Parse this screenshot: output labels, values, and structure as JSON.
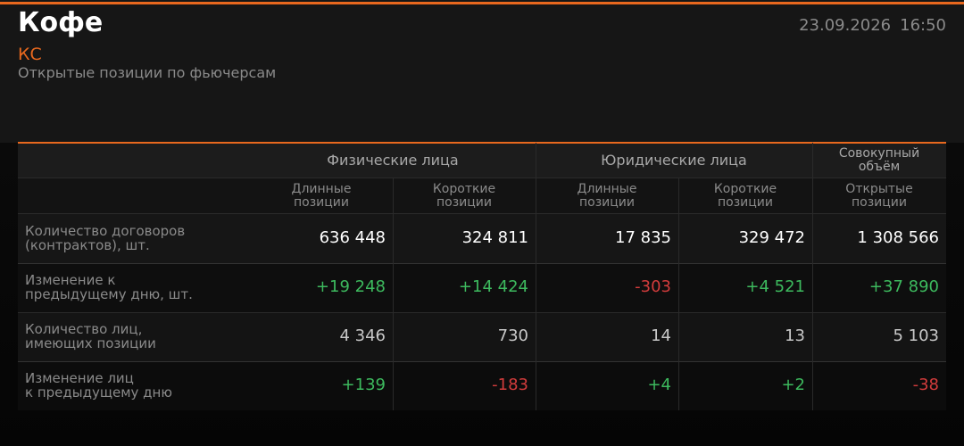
{
  "header": {
    "title": "Кофе",
    "ticker": "КС",
    "subtitle": "Открытые позиции по фьючерсам",
    "date": "23.09.2026",
    "time": "16:50"
  },
  "table": {
    "groups": [
      [
        "Физические лица"
      ],
      [
        "Юридические лица"
      ],
      [
        "Совокупный",
        "объём"
      ]
    ],
    "columns": [
      [
        "Длинные",
        "позиции"
      ],
      [
        "Короткие",
        "позиции"
      ],
      [
        "Длинные",
        "позиции"
      ],
      [
        "Короткие",
        "позиции"
      ],
      [
        "Открытые",
        "позиции"
      ]
    ],
    "rows": [
      {
        "label": [
          "Количество договоров",
          "(контрактов), шт."
        ],
        "values": [
          "636 448",
          "324 811",
          "17 835",
          "329 472",
          "1 308 566"
        ]
      },
      {
        "label": [
          "Изменение к",
          "предыдущему дню, шт."
        ],
        "values": [
          "+19 248",
          "+14 424",
          "-303",
          "+4 521",
          "+37 890"
        ]
      },
      {
        "label": [
          "Количество лиц,",
          "имеющих позиции"
        ],
        "values": [
          "4 346",
          "730",
          "14",
          "13",
          "5 103"
        ]
      },
      {
        "label": [
          "Изменение лиц",
          "к предыдущему дню"
        ],
        "values": [
          "+139",
          "-183",
          "+4",
          "+2",
          "-38"
        ]
      }
    ]
  }
}
